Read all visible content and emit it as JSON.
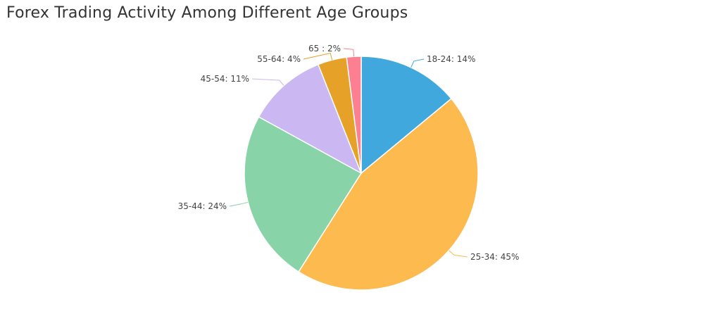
{
  "chart_data": {
    "type": "pie",
    "title": "Forex Trading Activity Among Different Age Groups",
    "slices": [
      {
        "label": "18-24",
        "value": 14,
        "display": "18-24: 14%",
        "color": "#41a8dd"
      },
      {
        "label": "25-34",
        "value": 45,
        "display": "25-34: 45%",
        "color": "#fdba4e"
      },
      {
        "label": "35-44",
        "value": 24,
        "display": "35-44: 24%",
        "color": "#88d3a8"
      },
      {
        "label": "45-54",
        "value": 11,
        "display": "45-54: 11%",
        "color": "#cbb8f2"
      },
      {
        "label": "55-64",
        "value": 4,
        "display": "55-64: 4%",
        "color": "#e6a128"
      },
      {
        "label": "65",
        "value": 2,
        "display": "65 : 2%",
        "color": "#fd7f92"
      }
    ],
    "legend": "none",
    "start_angle": "12 o'clock, clockwise"
  }
}
